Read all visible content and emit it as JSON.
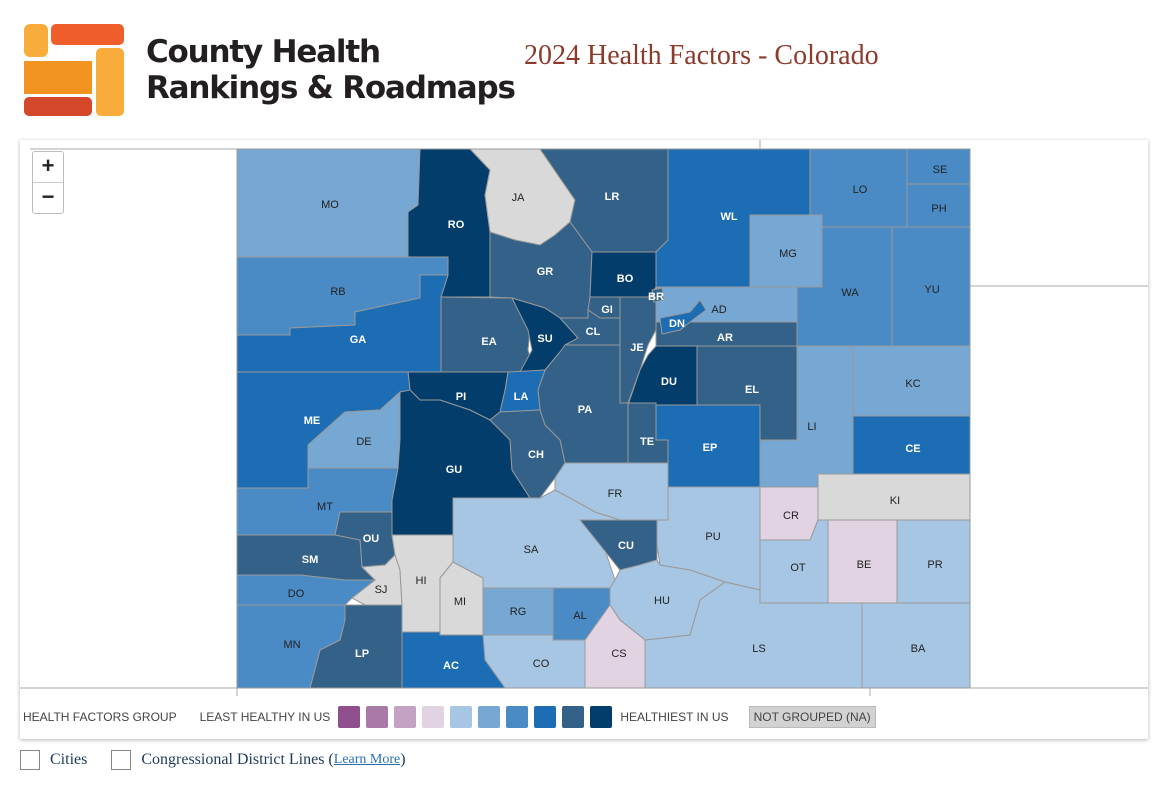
{
  "brand": {
    "line1": "County Health",
    "line2": "Rankings & Roadmaps"
  },
  "title": "2024 Health Factors - Colorado",
  "zoom": {
    "in": "+",
    "out": "−"
  },
  "legend": {
    "heading": "HEALTH FACTORS GROUP",
    "least": "LEAST HEALTHY IN US",
    "most": "HEALTHIEST IN US",
    "na": "NOT GROUPED (NA)",
    "colors": [
      "#8e4f8c",
      "#a97aa8",
      "#c4a2c3",
      "#e2d3e3",
      "#a6c6e3",
      "#76a8d3",
      "#4a8bc6",
      "#1d6db5",
      "#336188",
      "#023d6b"
    ],
    "na_color": "#d9d9d9"
  },
  "options": {
    "cities": "Cities",
    "districts": "Congressional District Lines (",
    "learn_more": "Learn More",
    "close": ")"
  },
  "counties": [
    {
      "abbr": "MO",
      "group": 6
    },
    {
      "abbr": "RO",
      "group": 10
    },
    {
      "abbr": "JA",
      "group": "NA"
    },
    {
      "abbr": "LR",
      "group": 9
    },
    {
      "abbr": "WL",
      "group": 8
    },
    {
      "abbr": "LO",
      "group": 7
    },
    {
      "abbr": "SE",
      "group": 7
    },
    {
      "abbr": "PH",
      "group": 7
    },
    {
      "abbr": "MG",
      "group": 6
    },
    {
      "abbr": "GR",
      "group": 9
    },
    {
      "abbr": "BO",
      "group": 10
    },
    {
      "abbr": "RB",
      "group": 7
    },
    {
      "abbr": "GA",
      "group": 8
    },
    {
      "abbr": "EA",
      "group": 9
    },
    {
      "abbr": "SU",
      "group": 10
    },
    {
      "abbr": "GI",
      "group": 9
    },
    {
      "abbr": "CL",
      "group": 9
    },
    {
      "abbr": "JE",
      "group": 9
    },
    {
      "abbr": "AD",
      "group": 6
    },
    {
      "abbr": "AR",
      "group": 9
    },
    {
      "abbr": "DN",
      "group": 8
    },
    {
      "abbr": "BR",
      "group": 9
    },
    {
      "abbr": "WA",
      "group": 7
    },
    {
      "abbr": "YU",
      "group": 7
    },
    {
      "abbr": "KC",
      "group": 6
    },
    {
      "abbr": "LI",
      "group": 6
    },
    {
      "abbr": "EL",
      "group": 9
    },
    {
      "abbr": "EP",
      "group": 8
    },
    {
      "abbr": "DU",
      "group": 10
    },
    {
      "abbr": "CE",
      "group": 8
    },
    {
      "abbr": "KI",
      "group": "NA"
    },
    {
      "abbr": "CR",
      "group": 4
    },
    {
      "abbr": "BE",
      "group": 4
    },
    {
      "abbr": "PR",
      "group": 5
    },
    {
      "abbr": "OT",
      "group": 5
    },
    {
      "abbr": "PU",
      "group": 5
    },
    {
      "abbr": "LS",
      "group": 5
    },
    {
      "abbr": "BA",
      "group": 5
    },
    {
      "abbr": "TE",
      "group": 9
    },
    {
      "abbr": "PA",
      "group": 9
    },
    {
      "abbr": "LA",
      "group": 8
    },
    {
      "abbr": "PI",
      "group": 10
    },
    {
      "abbr": "ME",
      "group": 8
    },
    {
      "abbr": "DE",
      "group": 6
    },
    {
      "abbr": "GU",
      "group": 10
    },
    {
      "abbr": "CH",
      "group": 9
    },
    {
      "abbr": "FR",
      "group": 5
    },
    {
      "abbr": "MT",
      "group": 7
    },
    {
      "abbr": "OU",
      "group": 9
    },
    {
      "abbr": "SM",
      "group": 9
    },
    {
      "abbr": "SJ",
      "group": "NA"
    },
    {
      "abbr": "HI",
      "group": "NA"
    },
    {
      "abbr": "MI",
      "group": "NA"
    },
    {
      "abbr": "SA",
      "group": 5
    },
    {
      "abbr": "CU",
      "group": 9
    },
    {
      "abbr": "HU",
      "group": 5
    },
    {
      "abbr": "RG",
      "group": 6
    },
    {
      "abbr": "AL",
      "group": 7
    },
    {
      "abbr": "CS",
      "group": 4
    },
    {
      "abbr": "CO",
      "group": 5
    },
    {
      "abbr": "AC",
      "group": 8
    },
    {
      "abbr": "LP",
      "group": 9
    },
    {
      "abbr": "DO",
      "group": 7
    },
    {
      "abbr": "MN",
      "group": 7
    }
  ]
}
